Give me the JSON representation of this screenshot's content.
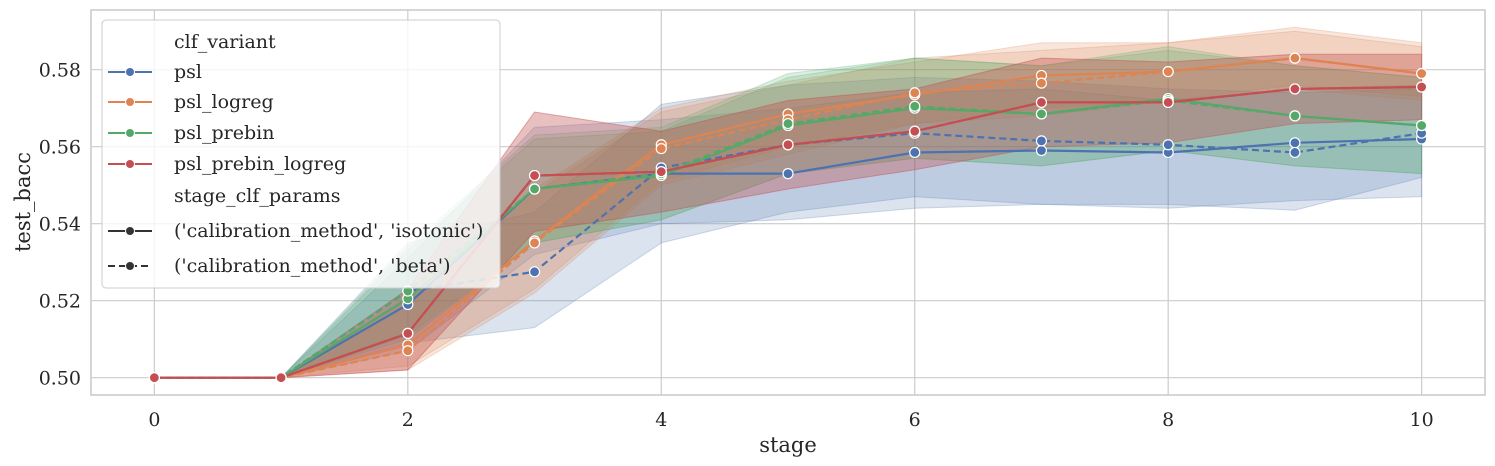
{
  "chart_data": {
    "type": "line",
    "xlabel": "stage",
    "ylabel": "test_bacc",
    "xlim": [
      -0.5,
      10.5
    ],
    "ylim": [
      0.4955,
      0.5955
    ],
    "xticks": [
      0,
      2,
      4,
      6,
      8,
      10
    ],
    "yticks": [
      0.5,
      0.52,
      0.54,
      0.56,
      0.58
    ],
    "xtick_labels": [
      "0",
      "2",
      "4",
      "6",
      "8",
      "10"
    ],
    "ytick_labels": [
      "0.50",
      "0.52",
      "0.54",
      "0.56",
      "0.58"
    ],
    "grid": true,
    "legend_position": "upper-left",
    "legend": {
      "hue_title": "clf_variant",
      "hue_entries": [
        {
          "label": "psl",
          "color": "#4c72b0"
        },
        {
          "label": "psl_logreg",
          "color": "#dd8452"
        },
        {
          "label": "psl_prebin",
          "color": "#55a868"
        },
        {
          "label": "psl_prebin_logreg",
          "color": "#c44e52"
        }
      ],
      "style_title": "stage_clf_params",
      "style_entries": [
        {
          "label": "('calibration_method', 'isotonic')",
          "dash": "solid"
        },
        {
          "label": "('calibration_method', 'beta')",
          "dash": "dashed"
        }
      ]
    },
    "series": [
      {
        "name": "psl",
        "color": "#4c72b0",
        "dash": "solid",
        "x": [
          0,
          1,
          2,
          3,
          4,
          5,
          6,
          7,
          8,
          9,
          10
        ],
        "y": [
          0.5,
          0.5,
          0.519,
          0.549,
          0.553,
          0.553,
          0.5585,
          0.559,
          0.5585,
          0.561,
          0.562
        ],
        "lower": [
          0.5,
          0.5,
          0.507,
          0.532,
          0.54,
          0.541,
          0.544,
          0.545,
          0.544,
          0.546,
          0.547
        ],
        "upper": [
          0.5,
          0.5,
          0.531,
          0.565,
          0.567,
          0.57,
          0.574,
          0.575,
          0.572,
          0.575,
          0.576
        ]
      },
      {
        "name": "psl",
        "color": "#4c72b0",
        "dash": "dashed",
        "x": [
          0,
          1,
          2,
          3,
          4,
          5,
          6,
          7,
          8,
          9,
          10
        ],
        "y": [
          0.5,
          0.5,
          0.5225,
          0.5275,
          0.5545,
          0.5605,
          0.5635,
          0.5615,
          0.5605,
          0.5585,
          0.5635
        ],
        "lower": [
          0.5,
          0.5,
          0.509,
          0.513,
          0.535,
          0.543,
          0.547,
          0.545,
          0.545,
          0.5435,
          0.552
        ],
        "upper": [
          0.5,
          0.5,
          0.535,
          0.543,
          0.571,
          0.576,
          0.578,
          0.577,
          0.575,
          0.574,
          0.575
        ]
      },
      {
        "name": "psl_logreg",
        "color": "#dd8452",
        "dash": "solid",
        "x": [
          0,
          1,
          2,
          3,
          4,
          5,
          6,
          7,
          8,
          9,
          10
        ],
        "y": [
          0.5,
          0.5,
          0.5085,
          0.5355,
          0.5605,
          0.5685,
          0.5735,
          0.5785,
          0.5795,
          0.583,
          0.579
        ],
        "lower": [
          0.5,
          0.5,
          0.503,
          0.523,
          0.551,
          0.56,
          0.566,
          0.57,
          0.572,
          0.576,
          0.573
        ],
        "upper": [
          0.5,
          0.5,
          0.521,
          0.549,
          0.57,
          0.577,
          0.582,
          0.587,
          0.587,
          0.59,
          0.586
        ]
      },
      {
        "name": "psl_logreg",
        "color": "#dd8452",
        "dash": "dashed",
        "x": [
          0,
          1,
          2,
          3,
          4,
          5,
          6,
          7,
          8,
          9,
          10
        ],
        "y": [
          0.5,
          0.5,
          0.507,
          0.535,
          0.5595,
          0.567,
          0.574,
          0.5765,
          0.5795,
          0.583,
          0.579
        ],
        "lower": [
          0.5,
          0.5,
          0.502,
          0.522,
          0.55,
          0.558,
          0.566,
          0.568,
          0.572,
          0.575,
          0.572
        ],
        "upper": [
          0.5,
          0.5,
          0.519,
          0.548,
          0.569,
          0.576,
          0.583,
          0.585,
          0.587,
          0.591,
          0.587
        ]
      },
      {
        "name": "psl_prebin",
        "color": "#55a868",
        "dash": "solid",
        "x": [
          0,
          1,
          2,
          3,
          4,
          5,
          6,
          7,
          8,
          9,
          10
        ],
        "y": [
          0.5,
          0.5,
          0.5205,
          0.549,
          0.5525,
          0.5655,
          0.57,
          0.5685,
          0.5725,
          0.568,
          0.5655
        ],
        "lower": [
          0.5,
          0.5,
          0.51,
          0.535,
          0.541,
          0.553,
          0.557,
          0.555,
          0.559,
          0.555,
          0.553
        ],
        "upper": [
          0.5,
          0.5,
          0.533,
          0.562,
          0.564,
          0.578,
          0.583,
          0.581,
          0.586,
          0.581,
          0.578
        ]
      },
      {
        "name": "psl_prebin",
        "color": "#55a868",
        "dash": "dashed",
        "x": [
          0,
          1,
          2,
          3,
          4,
          5,
          6,
          7,
          8,
          9,
          10
        ],
        "y": [
          0.5,
          0.5,
          0.5225,
          0.549,
          0.553,
          0.566,
          0.5705,
          0.5685,
          0.572,
          0.568,
          0.5655
        ],
        "lower": [
          0.5,
          0.5,
          0.511,
          0.535,
          0.541,
          0.553,
          0.557,
          0.555,
          0.559,
          0.555,
          0.553
        ],
        "upper": [
          0.5,
          0.5,
          0.534,
          0.563,
          0.565,
          0.579,
          0.583,
          0.581,
          0.585,
          0.581,
          0.578
        ]
      },
      {
        "name": "psl_prebin_logreg",
        "color": "#c44e52",
        "dash": "solid",
        "x": [
          0,
          1,
          2,
          3,
          4,
          5,
          6,
          7,
          8,
          9,
          10
        ],
        "y": [
          0.5,
          0.5,
          0.5115,
          0.5525,
          0.5535,
          0.5605,
          0.564,
          0.5715,
          0.5715,
          0.575,
          0.5755
        ],
        "lower": [
          0.5,
          0.5,
          0.502,
          0.538,
          0.543,
          0.549,
          0.554,
          0.56,
          0.561,
          0.566,
          0.567
        ],
        "upper": [
          0.5,
          0.5,
          0.523,
          0.569,
          0.564,
          0.572,
          0.575,
          0.583,
          0.582,
          0.584,
          0.584
        ]
      },
      {
        "name": "psl_prebin_logreg",
        "color": "#c44e52",
        "dash": "dashed",
        "x": [
          0,
          1,
          2,
          3,
          4,
          5,
          6,
          7,
          8,
          9,
          10
        ],
        "y": [
          0.5,
          0.5,
          0.5115,
          0.5525,
          0.5535,
          0.5605,
          0.564,
          0.5715,
          0.5715,
          0.575,
          0.5755
        ],
        "lower": [
          0.5,
          0.5,
          0.502,
          0.538,
          0.543,
          0.549,
          0.554,
          0.56,
          0.561,
          0.566,
          0.567
        ],
        "upper": [
          0.5,
          0.5,
          0.523,
          0.569,
          0.564,
          0.572,
          0.575,
          0.583,
          0.582,
          0.584,
          0.584
        ]
      }
    ]
  }
}
